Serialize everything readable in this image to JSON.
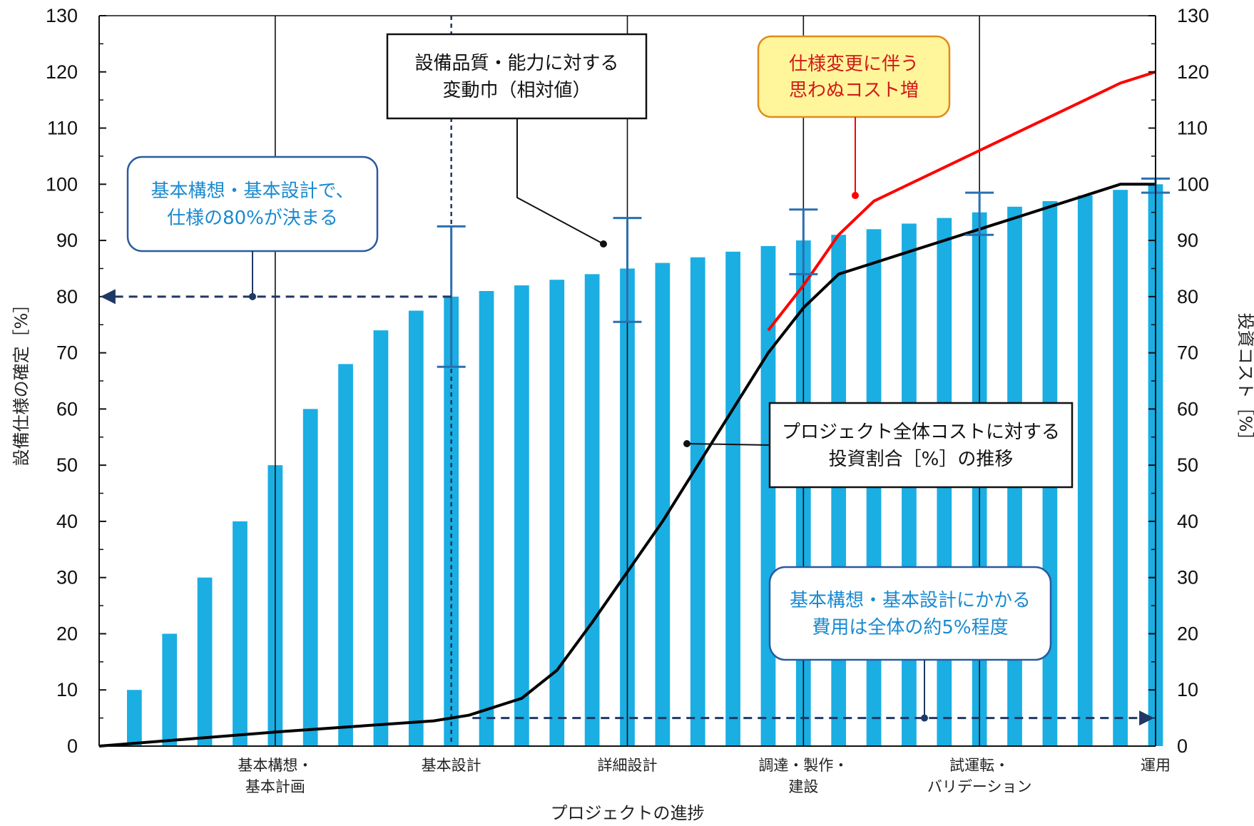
{
  "chart_data": {
    "type": "bar",
    "title": "",
    "xlabel": "プロジェクトの進捗",
    "ylabel_left": "設備仕様の確定［%］",
    "ylabel_right": "投資コスト［%］",
    "ylim": [
      0,
      130
    ],
    "y_ticks": [
      0,
      10,
      20,
      30,
      40,
      50,
      60,
      70,
      80,
      90,
      100,
      110,
      120,
      130
    ],
    "x_range": [
      0,
      30
    ],
    "grid": false,
    "colors": {
      "bars": "#1aaee3",
      "investment_line": "#000000",
      "cost_increase_line": "#ff0000",
      "dashed_arrows": "#1f3864",
      "note_text": "#1a8ad0",
      "warning_text": "#d11a1a",
      "warning_fill": "#fff59a",
      "warning_border": "#e08a1a"
    },
    "phases": [
      {
        "label": [
          "基本構想・",
          "基本計画"
        ],
        "x": 5
      },
      {
        "label": [
          "基本設計"
        ],
        "x": 10
      },
      {
        "label": [
          "詳細設計"
        ],
        "x": 15
      },
      {
        "label": [
          "調達・製作・",
          "建設"
        ],
        "x": 20
      },
      {
        "label": [
          "試運転・",
          "バリデーション"
        ],
        "x": 25
      },
      {
        "label": [
          "運用"
        ],
        "x": 30
      }
    ],
    "series": [
      {
        "type": "bar",
        "x": [
          1,
          2,
          3,
          4,
          5,
          6,
          7,
          8,
          9,
          10,
          11,
          12,
          13,
          14,
          15,
          16,
          17,
          18,
          19,
          20,
          21,
          22,
          23,
          24,
          25,
          26,
          27,
          28,
          29,
          30
        ],
        "values": [
          10,
          20,
          30,
          40,
          50,
          60,
          68,
          74,
          77.5,
          80,
          81,
          82,
          83,
          84,
          85,
          86,
          87,
          88,
          89,
          90,
          91,
          92,
          93,
          94,
          95,
          96,
          97,
          98,
          99,
          100
        ]
      },
      {
        "type": "line",
        "x": [
          0,
          5,
          9.5,
          10.5,
          12,
          13,
          14,
          15,
          16,
          17,
          18,
          19,
          20,
          21,
          22,
          23,
          24,
          25,
          26,
          27,
          28,
          29,
          30
        ],
        "values": [
          0,
          2.5,
          4.5,
          5.5,
          8.5,
          13.5,
          22,
          31,
          40,
          50,
          60,
          70,
          78,
          84,
          86,
          88,
          90,
          92,
          94,
          96,
          98,
          100,
          100
        ]
      },
      {
        "type": "line",
        "x": [
          19,
          20,
          21,
          22,
          23,
          24,
          25,
          26,
          27,
          28,
          29,
          30
        ],
        "values": [
          74,
          82,
          91,
          97,
          100,
          103,
          106,
          109,
          112,
          115,
          118,
          120
        ]
      }
    ],
    "error_bars": [
      {
        "x": 10,
        "y": 80,
        "low": 67.5,
        "high": 92.5
      },
      {
        "x": 15,
        "y": 85,
        "low": 75.5,
        "high": 94
      },
      {
        "x": 20,
        "y": 90,
        "low": 84,
        "high": 95.5
      },
      {
        "x": 25,
        "y": 95,
        "low": 91,
        "high": 98.5
      },
      {
        "x": 30,
        "y": 100,
        "low": 98.5,
        "high": 101
      }
    ],
    "annotations": {
      "variation_box": [
        "設備品質・能力に対する",
        "変動巾（相対値）"
      ],
      "cost_increase_box": [
        "仕様変更に伴う",
        "思わぬコスト増"
      ],
      "spec_note_box": [
        "基本構想・基本設計で、",
        "仕様の80%が決まる"
      ],
      "investment_box": [
        "プロジェクト全体コストに対する",
        "投資割合［%］の推移"
      ],
      "cost_note_box": [
        "基本構想・基本設計にかかる",
        "費用は全体の約5%程度"
      ]
    }
  }
}
